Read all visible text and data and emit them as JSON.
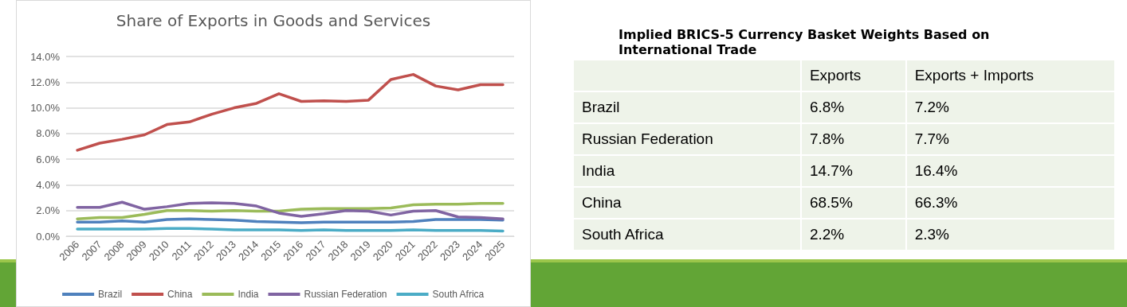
{
  "chart_data": [
    {
      "type": "line",
      "title": "Share of Exports in Goods and Services",
      "categories": [
        "2006",
        "2007",
        "2008",
        "2009",
        "2010",
        "2011",
        "2012",
        "2013",
        "2014",
        "2015",
        "2016",
        "2017",
        "2018",
        "2019",
        "2020",
        "2021",
        "2022",
        "2023",
        "2024",
        "2025"
      ],
      "series": [
        {
          "name": "Brazil",
          "color": "#4f81bd",
          "values": [
            1.1,
            1.1,
            1.2,
            1.1,
            1.3,
            1.35,
            1.3,
            1.25,
            1.15,
            1.1,
            1.05,
            1.1,
            1.1,
            1.1,
            1.1,
            1.15,
            1.3,
            1.3,
            1.3,
            1.25
          ]
        },
        {
          "name": "China",
          "color": "#c0504d",
          "values": [
            6.7,
            7.25,
            7.55,
            7.9,
            8.7,
            8.9,
            9.5,
            10.0,
            10.35,
            11.1,
            10.5,
            10.55,
            10.5,
            10.6,
            12.2,
            12.6,
            11.7,
            11.4,
            11.8,
            11.8
          ]
        },
        {
          "name": "India",
          "color": "#9bbb59",
          "values": [
            1.35,
            1.45,
            1.45,
            1.7,
            2.0,
            2.0,
            1.95,
            2.0,
            1.95,
            1.95,
            2.1,
            2.15,
            2.15,
            2.15,
            2.2,
            2.45,
            2.5,
            2.5,
            2.55,
            2.55
          ]
        },
        {
          "name": "Russian Federation",
          "color": "#8064a2",
          "values": [
            2.25,
            2.25,
            2.65,
            2.1,
            2.3,
            2.55,
            2.6,
            2.55,
            2.35,
            1.8,
            1.55,
            1.75,
            2.0,
            1.95,
            1.65,
            1.95,
            2.0,
            1.5,
            1.45,
            1.35
          ]
        },
        {
          "name": "South Africa",
          "color": "#4bacc6",
          "values": [
            0.55,
            0.55,
            0.55,
            0.55,
            0.6,
            0.6,
            0.55,
            0.5,
            0.5,
            0.5,
            0.45,
            0.5,
            0.45,
            0.45,
            0.45,
            0.5,
            0.45,
            0.45,
            0.45,
            0.4
          ]
        }
      ],
      "ylim": [
        0,
        14
      ],
      "yticks": [
        {
          "value": 0,
          "label": "0.0%"
        },
        {
          "value": 2,
          "label": "2.0%"
        },
        {
          "value": 4,
          "label": "4.0%"
        },
        {
          "value": 6,
          "label": "6.0%"
        },
        {
          "value": 8,
          "label": "8.0%"
        },
        {
          "value": 10,
          "label": "10.0%"
        },
        {
          "value": 12,
          "label": "12.0%"
        },
        {
          "value": 14,
          "label": "14.0%"
        }
      ],
      "grid": "y",
      "legend": "bottom",
      "marker": "none",
      "line_style": "solid"
    },
    {
      "type": "other",
      "title": "Implied BRICS-5 Currency Basket Weights Based on International Trade",
      "categories": [
        "Brazil",
        "Russian Federation",
        "India",
        "China",
        "South Africa"
      ],
      "series": [
        {
          "name": "Exports",
          "values": [
            6.8,
            7.8,
            14.7,
            68.5,
            2.2
          ],
          "value_labels": [
            "6.8%",
            "7.8%",
            "14.7%",
            "68.5%",
            "2.2%"
          ]
        },
        {
          "name": "Exports + Imports",
          "values": [
            7.2,
            7.7,
            16.4,
            66.3,
            2.3
          ],
          "value_labels": [
            "7.2%",
            "7.7%",
            "16.4%",
            "66.3%",
            "2.3%"
          ]
        }
      ]
    }
  ]
}
